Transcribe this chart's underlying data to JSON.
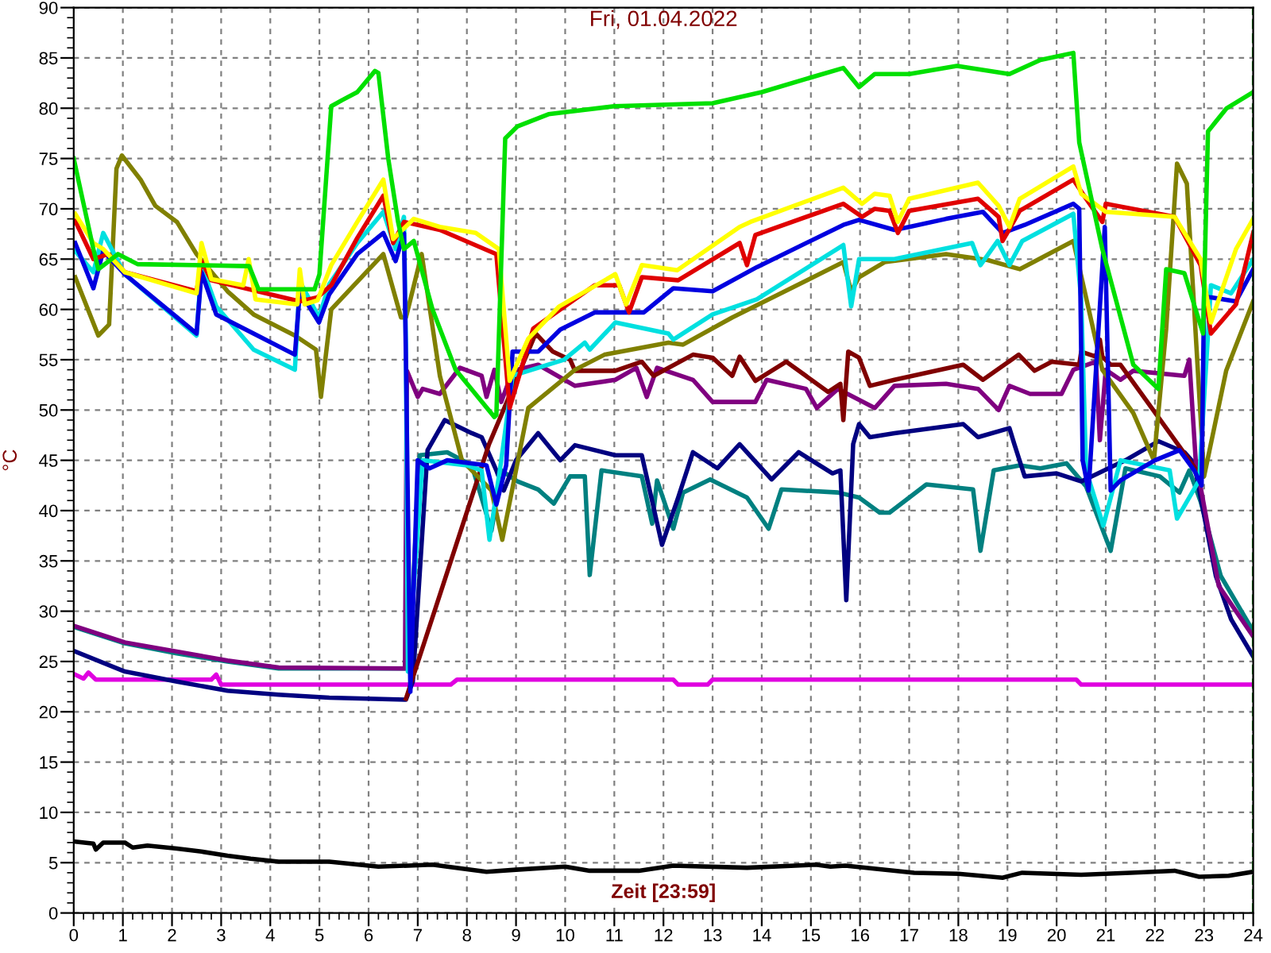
{
  "chart_data": {
    "type": "line",
    "title": "Fri, 01.04.2022",
    "xlabel": "Zeit [23:59]",
    "ylabel": "°C",
    "xlim": [
      0,
      24
    ],
    "ylim": [
      0,
      90
    ],
    "xticks": [
      0,
      1,
      2,
      3,
      4,
      5,
      6,
      7,
      8,
      9,
      10,
      11,
      12,
      13,
      14,
      15,
      16,
      17,
      18,
      19,
      20,
      21,
      22,
      23,
      24
    ],
    "yticks": [
      0,
      5,
      10,
      15,
      20,
      25,
      30,
      35,
      40,
      45,
      50,
      55,
      60,
      65,
      70,
      75,
      80,
      85,
      90
    ],
    "grid": true,
    "marker": "none",
    "line_style": "solid",
    "ref_lines": [
      {
        "axis": "x",
        "value": 24,
        "color": "#008000",
        "line_style": "dashed"
      }
    ],
    "series": [
      {
        "color": "#000000",
        "x": [
          0.03,
          0.4,
          0.45,
          0.6,
          1.04,
          1.2,
          1.5,
          2.1,
          2.6,
          3.13,
          3.6,
          4.17,
          5.2,
          6.2,
          7.3,
          7.6,
          8.4,
          9.0,
          10.0,
          10.5,
          11.5,
          12.2,
          13.7,
          15.1,
          15.4,
          15.7,
          17.1,
          18.0,
          18.9,
          19.3,
          20.5,
          21.5,
          22.4,
          22.9,
          23.5,
          24.0
        ],
        "values": [
          7.1,
          6.9,
          6.3,
          7.0,
          7.0,
          6.5,
          6.7,
          6.4,
          6.1,
          5.7,
          5.4,
          5.1,
          5.1,
          4.6,
          4.8,
          4.6,
          4.1,
          4.3,
          4.6,
          4.2,
          4.2,
          4.7,
          4.5,
          4.8,
          4.6,
          4.7,
          4.0,
          3.9,
          3.5,
          4.0,
          3.8,
          4.0,
          4.2,
          3.6,
          3.7,
          4.1
        ]
      },
      {
        "color": "#e000e0",
        "x": [
          0.03,
          0.2,
          0.3,
          0.45,
          1.36,
          2.8,
          2.9,
          3.0,
          7.67,
          7.8,
          12.2,
          12.3,
          12.9,
          13.0,
          20.4,
          20.5,
          24.0
        ],
        "values": [
          23.7,
          23.3,
          23.9,
          23.2,
          23.2,
          23.2,
          23.7,
          22.7,
          22.7,
          23.2,
          23.2,
          22.7,
          22.7,
          23.2,
          23.2,
          22.7,
          22.7
        ]
      },
      {
        "color": "#008080",
        "x": [
          0.03,
          1.04,
          2.1,
          3.13,
          4.17,
          5.2,
          6.82,
          7.04,
          7.6,
          8.1,
          8.5,
          8.7,
          9.03,
          9.45,
          9.77,
          10.1,
          10.4,
          10.5,
          10.74,
          11.56,
          11.77,
          11.87,
          12.2,
          12.4,
          12.95,
          13.7,
          14.14,
          14.4,
          15.55,
          15.98,
          16.4,
          16.6,
          17.35,
          18.3,
          18.45,
          18.72,
          19.25,
          19.67,
          20.2,
          20.6,
          21.1,
          21.4,
          22.1,
          22.5,
          22.7,
          22.93,
          23.34,
          24.0
        ],
        "values": [
          28.4,
          26.8,
          25.8,
          25,
          24.3,
          24.3,
          24.3,
          45.5,
          45.8,
          44.5,
          38,
          44,
          42.9,
          42.1,
          40.7,
          43.4,
          43.4,
          33.6,
          44,
          43.4,
          38.7,
          43,
          38.2,
          41.8,
          43.1,
          41.3,
          38.2,
          42.1,
          41.8,
          41.3,
          39.8,
          39.8,
          42.6,
          42.1,
          36,
          44,
          44.5,
          44.2,
          44.7,
          42.4,
          36,
          44.2,
          43.4,
          41.8,
          44,
          40.9,
          33.5,
          28
        ]
      },
      {
        "color": "#000080",
        "x": [
          0.03,
          1.04,
          2.1,
          3.13,
          4.17,
          5.2,
          6.76,
          6.9,
          7.2,
          7.55,
          8.1,
          8.3,
          8.6,
          8.75,
          9.0,
          9.45,
          9.9,
          10.2,
          11.02,
          11.56,
          11.97,
          12.3,
          12.6,
          13.1,
          13.55,
          14.2,
          14.75,
          15.44,
          15.6,
          15.72,
          15.86,
          15.98,
          16.2,
          16.7,
          18.1,
          18.4,
          19.04,
          19.14,
          19.35,
          20.0,
          20.5,
          21.4,
          22.07,
          22.6,
          22.8,
          22.93,
          23.24,
          23.55,
          24.0
        ],
        "values": [
          26,
          24,
          23,
          22.1,
          21.7,
          21.4,
          21.2,
          23,
          46,
          49,
          47.7,
          47.3,
          44,
          42,
          45,
          47.7,
          45,
          46.5,
          45.5,
          45.5,
          36.6,
          41.3,
          45.8,
          44.2,
          46.6,
          43.1,
          45.8,
          43.7,
          44,
          31.1,
          46.6,
          48.6,
          47.3,
          47.7,
          48.6,
          47.3,
          48.2,
          46.6,
          43.4,
          43.7,
          42.9,
          45,
          46.9,
          45.8,
          44.7,
          41.3,
          33.5,
          29.2,
          25.5
        ]
      },
      {
        "color": "#800080",
        "x": [
          0.03,
          1.04,
          3.13,
          4.17,
          6.74,
          6.78,
          7.0,
          7.1,
          7.45,
          7.86,
          8.3,
          8.4,
          8.56,
          8.7,
          8.93,
          9.45,
          10.2,
          11.02,
          11.45,
          11.66,
          11.87,
          12.6,
          13.0,
          13.87,
          14.1,
          14.9,
          15.12,
          15.55,
          16.3,
          16.7,
          17.75,
          18.4,
          18.82,
          19.04,
          19.46,
          20.1,
          20.34,
          20.8,
          20.88,
          21.0,
          21.3,
          21.56,
          22.6,
          22.7,
          22.83,
          23.3,
          24.0
        ],
        "values": [
          28.5,
          26.9,
          25.1,
          24.4,
          24.3,
          53.9,
          51.3,
          52.1,
          51.6,
          54.2,
          53.4,
          51.3,
          54,
          50.8,
          53.9,
          54.5,
          52.4,
          53,
          54.2,
          51.3,
          54.2,
          53,
          50.8,
          50.8,
          53,
          52.1,
          50.2,
          52.1,
          50.2,
          52.4,
          52.6,
          52.1,
          50,
          52.4,
          51.6,
          51.6,
          54,
          54.8,
          47,
          54,
          53,
          53.9,
          53.4,
          55,
          45,
          32.5,
          27.5
        ]
      },
      {
        "color": "#800000",
        "x": [
          6.76,
          8.45,
          9.4,
          9.75,
          10.1,
          10.2,
          11.02,
          11.56,
          11.8,
          12.6,
          13.0,
          13.4,
          13.55,
          13.87,
          14.5,
          15.35,
          15.6,
          15.66,
          15.76,
          15.98,
          16.2,
          16.7,
          18.1,
          18.5,
          19.23,
          19.55,
          19.9,
          20.46,
          20.5,
          20.8,
          20.88,
          20.93,
          21.1,
          21.3,
          22.85
        ],
        "values": [
          21.3,
          46.6,
          57.6,
          55.8,
          55,
          53.9,
          53.9,
          54.8,
          53.4,
          55.5,
          55.2,
          53.4,
          55.3,
          52.9,
          54.8,
          51.8,
          52.6,
          49,
          55.8,
          55.2,
          52.4,
          53,
          54.5,
          53,
          55.5,
          53.9,
          54.8,
          54.5,
          55.8,
          55.3,
          57,
          55.3,
          54.5,
          54.5,
          44
        ]
      },
      {
        "color": "#808000",
        "x": [
          0.03,
          0.5,
          0.72,
          0.87,
          0.98,
          1.36,
          1.66,
          2.1,
          2.5,
          3.13,
          3.66,
          4.5,
          4.93,
          5.03,
          5.24,
          6.3,
          6.66,
          6.76,
          7.08,
          7.45,
          7.9,
          8.5,
          8.72,
          9.25,
          10.2,
          10.8,
          12.1,
          12.4,
          13.4,
          15.66,
          15.82,
          15.98,
          16.5,
          17.75,
          18.6,
          19.25,
          20.34,
          20.93,
          21.56,
          21.98,
          22.23,
          22.45,
          22.65,
          23.0,
          23.45,
          24.0
        ],
        "values": [
          63.2,
          57.4,
          58.5,
          74,
          75.3,
          72.9,
          70.3,
          68.7,
          65.5,
          61.8,
          59.5,
          57.4,
          56,
          51.3,
          60,
          65.5,
          59.2,
          59.2,
          65.5,
          53.4,
          45,
          42,
          37.1,
          50.2,
          54,
          55.5,
          56.7,
          56.5,
          59.2,
          64.7,
          61.8,
          63.2,
          64.7,
          65.5,
          64.9,
          64,
          66.8,
          54,
          49.7,
          45,
          58.1,
          74.5,
          72.5,
          43.4,
          53.9,
          60.8
        ]
      },
      {
        "color": "#00e0e0",
        "x": [
          0.03,
          0.4,
          0.6,
          1.04,
          2.5,
          2.6,
          2.9,
          3.66,
          4.5,
          4.6,
          4.99,
          5.2,
          5.77,
          6.3,
          6.55,
          6.72,
          6.76,
          6.8,
          7.1,
          8.0,
          8.3,
          8.46,
          8.7,
          8.93,
          9.98,
          10.4,
          10.5,
          11.02,
          12.1,
          12.2,
          13.0,
          13.9,
          15.66,
          15.82,
          15.98,
          16.7,
          18.28,
          18.45,
          18.8,
          19.04,
          19.3,
          20.34,
          20.5,
          20.6,
          20.95,
          21.3,
          22.3,
          22.45,
          22.9,
          23.14,
          23.55,
          24.0
        ],
        "values": [
          65.8,
          63.7,
          67.6,
          63.5,
          57.4,
          64.4,
          60.3,
          56,
          54,
          62.8,
          59.2,
          62.5,
          66.6,
          69.7,
          66,
          69.2,
          56,
          24,
          45,
          44.5,
          44,
          37.1,
          45,
          53.4,
          55,
          56.7,
          56,
          58.7,
          57.6,
          57,
          59.5,
          61,
          66.4,
          60.3,
          65,
          65,
          66.6,
          64.4,
          66.8,
          64.4,
          66.8,
          69.5,
          61,
          44,
          38.5,
          45,
          44,
          39.2,
          43,
          62.4,
          61.6,
          65
        ]
      },
      {
        "color": "#0000e0",
        "x": [
          0.03,
          0.4,
          0.6,
          1.04,
          2.5,
          2.6,
          2.9,
          3.66,
          4.5,
          4.6,
          4.99,
          5.2,
          5.77,
          6.3,
          6.55,
          6.72,
          6.76,
          6.85,
          7.0,
          7.24,
          7.6,
          8.4,
          8.6,
          8.8,
          8.93,
          9.45,
          9.9,
          10.6,
          11.24,
          11.6,
          12.2,
          13.0,
          13.9,
          15.66,
          15.98,
          16.7,
          17.0,
          17.75,
          18.5,
          18.9,
          19.35,
          20.34,
          20.46,
          20.53,
          20.65,
          20.98,
          21.1,
          21.3,
          22.0,
          22.5,
          22.8,
          22.95,
          23.0,
          23.65,
          24.0
        ],
        "values": [
          66.6,
          62.1,
          65.8,
          63.5,
          57.6,
          63.7,
          59.5,
          57.6,
          55.5,
          61.8,
          58.7,
          61.5,
          65.5,
          67.6,
          64.8,
          67.6,
          55,
          22,
          45,
          44.2,
          45,
          44.5,
          40.6,
          44.5,
          55.8,
          55.8,
          58,
          59.7,
          59.7,
          59.7,
          62.1,
          61.8,
          64.2,
          68.4,
          68.9,
          67.9,
          68.2,
          69,
          69.7,
          67.6,
          68.4,
          70.5,
          70,
          45,
          42,
          68.2,
          42,
          43,
          45,
          46,
          44,
          42.5,
          61.3,
          60.8,
          64
        ]
      },
      {
        "color": "#e00000",
        "x": [
          0.03,
          0.4,
          0.7,
          1.04,
          2.5,
          2.6,
          2.8,
          4.6,
          4.96,
          5.24,
          5.77,
          6.3,
          6.5,
          6.72,
          7.45,
          8.6,
          8.87,
          9.35,
          10.6,
          11.1,
          11.3,
          11.56,
          12.3,
          13.55,
          13.7,
          13.87,
          15.66,
          16.04,
          16.3,
          16.6,
          16.77,
          17.0,
          18.4,
          18.82,
          18.9,
          19.25,
          20.34,
          20.6,
          20.93,
          21.0,
          22.4,
          22.93,
          23.14,
          23.65,
          24.0
        ],
        "values": [
          68.8,
          65,
          65.5,
          63.7,
          61.8,
          64.8,
          62.9,
          60.8,
          61.2,
          62.4,
          67.1,
          71.3,
          66.6,
          68.7,
          67.9,
          65.5,
          50.2,
          58.1,
          62.4,
          62.4,
          59.7,
          63.2,
          62.9,
          66.6,
          64.4,
          67.4,
          70.5,
          69.2,
          70,
          69.8,
          67.6,
          69.8,
          71,
          69.2,
          66.8,
          69.8,
          72.9,
          71,
          68.7,
          70.5,
          69.2,
          64.4,
          57.6,
          60.5,
          67.6
        ]
      },
      {
        "color": "#ffff00",
        "x": [
          0.03,
          0.4,
          0.6,
          1.04,
          2.5,
          2.6,
          2.8,
          3.45,
          3.56,
          3.7,
          4.55,
          4.6,
          4.7,
          4.96,
          5.24,
          5.77,
          6.3,
          6.5,
          6.92,
          7.45,
          8.18,
          8.65,
          8.87,
          9.25,
          9.88,
          11.02,
          11.24,
          11.56,
          12.28,
          13.55,
          13.77,
          15.66,
          16.04,
          16.3,
          16.6,
          16.77,
          17.0,
          18.4,
          18.82,
          19.04,
          19.25,
          20.34,
          20.5,
          21.0,
          22.4,
          22.93,
          23.14,
          23.65,
          24.0
        ],
        "values": [
          69.5,
          66.6,
          66,
          63.7,
          61.6,
          66.6,
          63,
          62.4,
          65,
          61,
          60.5,
          64,
          60.5,
          60.9,
          64.4,
          68.7,
          72.9,
          67,
          69,
          68.2,
          67.6,
          66,
          52.9,
          57.1,
          60.3,
          63.5,
          60.5,
          64.4,
          63.9,
          68.2,
          68.7,
          72.1,
          70.5,
          71.5,
          71.3,
          68.7,
          71,
          72.6,
          70.3,
          68.2,
          71,
          74.2,
          71.5,
          69.7,
          69.2,
          65,
          58.7,
          66,
          69
        ]
      },
      {
        "color": "#00e000",
        "x": [
          0.0,
          0.4,
          0.5,
          0.9,
          1.3,
          3.57,
          3.76,
          4.6,
          4.9,
          5.0,
          5.24,
          5.46,
          5.77,
          6.13,
          6.2,
          6.4,
          6.6,
          6.72,
          6.92,
          7.3,
          7.77,
          8.56,
          8.6,
          8.78,
          9.03,
          9.66,
          11.0,
          13.0,
          14.0,
          15.1,
          15.66,
          15.98,
          16.3,
          17.0,
          17.97,
          19.04,
          19.67,
          20.34,
          20.46,
          20.93,
          21.56,
          22.07,
          22.23,
          22.6,
          22.98,
          23.08,
          23.46,
          24.0
        ],
        "values": [
          75,
          66,
          64,
          65.5,
          64.5,
          64.3,
          62,
          62,
          62,
          63.5,
          80.2,
          80.8,
          81.6,
          83.7,
          83.5,
          75,
          68.7,
          66,
          66.8,
          60,
          54,
          49.3,
          49.5,
          77,
          78.2,
          79.4,
          80.2,
          80.5,
          81.6,
          83.2,
          84,
          82.1,
          83.4,
          83.4,
          84.2,
          83.4,
          84.8,
          85.5,
          76.6,
          66,
          54.5,
          52.1,
          64,
          63.6,
          57.6,
          77.7,
          80,
          81.6
        ]
      }
    ]
  }
}
